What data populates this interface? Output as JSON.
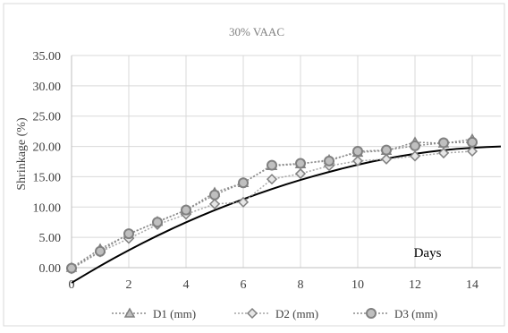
{
  "chart_data": {
    "type": "line",
    "title": "30% VAAC",
    "ylabel": "Shrinkage  (%)",
    "xlabel": "Days",
    "xlim": [
      0,
      15
    ],
    "ylim": [
      0,
      35
    ],
    "x_ticks": [
      0,
      2,
      4,
      6,
      8,
      10,
      12,
      14
    ],
    "y_ticks": [
      "0.00",
      "5.00",
      "10.00",
      "15.00",
      "20.00",
      "25.00",
      "30.00",
      "35.00"
    ],
    "grid": true,
    "legend_position": "bottom",
    "x": [
      0,
      1,
      2,
      3,
      4,
      5,
      6,
      7,
      8,
      9,
      10,
      11,
      12,
      13,
      14
    ],
    "series": [
      {
        "name": "D1 (mm)",
        "marker": "triangle",
        "color": "#8c8c8c",
        "values": [
          0.0,
          3.1,
          5.5,
          7.6,
          9.5,
          12.4,
          14.0,
          16.8,
          17.1,
          17.8,
          19.0,
          19.3,
          20.7,
          20.5,
          21.2
        ]
      },
      {
        "name": "D2 (mm)",
        "marker": "diamond",
        "color": "#a6a6a6",
        "values": [
          -0.2,
          2.6,
          4.8,
          7.1,
          8.8,
          10.5,
          10.8,
          14.6,
          15.5,
          16.8,
          17.6,
          17.9,
          18.4,
          18.9,
          19.2
        ]
      },
      {
        "name": "D3 (mm)",
        "marker": "circle",
        "color": "#8c8c8c",
        "values": [
          -0.1,
          2.7,
          5.6,
          7.5,
          9.5,
          12.0,
          14.0,
          16.9,
          17.2,
          17.6,
          19.2,
          19.4,
          20.1,
          20.6,
          20.7
        ]
      }
    ],
    "trendline": {
      "color": "#000000",
      "x": [
        0,
        1,
        2,
        3,
        4,
        5,
        6,
        7,
        8,
        9,
        10,
        11,
        12,
        13,
        14,
        15
      ],
      "values": [
        -2.5,
        0.3,
        2.9,
        5.3,
        7.5,
        9.5,
        11.3,
        13.0,
        14.5,
        15.8,
        17.0,
        18.0,
        18.8,
        19.4,
        19.8,
        20.0
      ]
    }
  }
}
